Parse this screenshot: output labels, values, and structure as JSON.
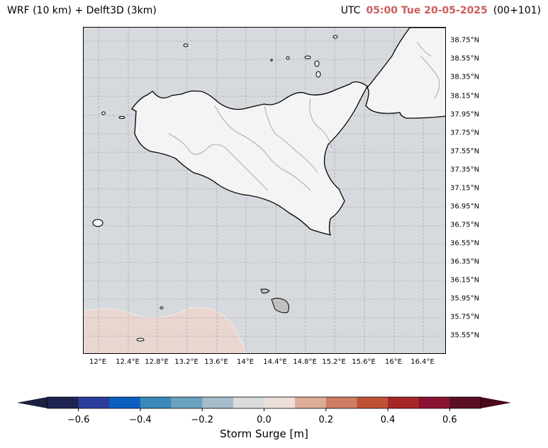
{
  "header": {
    "left_title": "WRF (10 km) + Delft3D (3km)",
    "utc_label": "UTC",
    "time": "05:00 Tue 20-05-2025",
    "lead": "(00+101)"
  },
  "map": {
    "region": "Sicily, Malta and southern Calabria",
    "colors": {
      "sea": "#d6dade",
      "land": "#f4f4f4",
      "coastline": "#000000",
      "borders": "#a9a9a9",
      "grid": "#9a9a9a",
      "positive_surge_area": "#ead6d0",
      "negative_surge_edge": "#7fa2bc"
    },
    "lat_ticks": [
      "38.75°N",
      "38.55°N",
      "38.35°N",
      "38.15°N",
      "37.95°N",
      "37.75°N",
      "37.55°N",
      "37.35°N",
      "37.15°N",
      "36.95°N",
      "36.75°N",
      "36.55°N",
      "36.35°N",
      "36.15°N",
      "35.95°N",
      "35.75°N",
      "35.55°N"
    ],
    "lon_ticks": [
      "12°E",
      "12.4°E",
      "12.8°E",
      "13.2°E",
      "13.6°E",
      "14°E",
      "14.4°E",
      "14.8°E",
      "15.2°E",
      "15.6°E",
      "16°E",
      "16.4°E"
    ]
  },
  "colorbar": {
    "title": "Storm Surge [m]",
    "ticks": [
      "−0.6",
      "−0.4",
      "−0.2",
      "0.0",
      "0.2",
      "0.4",
      "0.6"
    ],
    "bins": [
      "#1d2451",
      "#2a3d9c",
      "#0b60bf",
      "#3b88bb",
      "#6aa3bd",
      "#a7bcc8",
      "#dadcde",
      "#ecdeda",
      "#ddab97",
      "#cf7d62",
      "#bf5235",
      "#a72626",
      "#8a1230",
      "#5b0e22"
    ],
    "extend_low_color": "#1a2040",
    "extend_high_color": "#4a0818"
  }
}
